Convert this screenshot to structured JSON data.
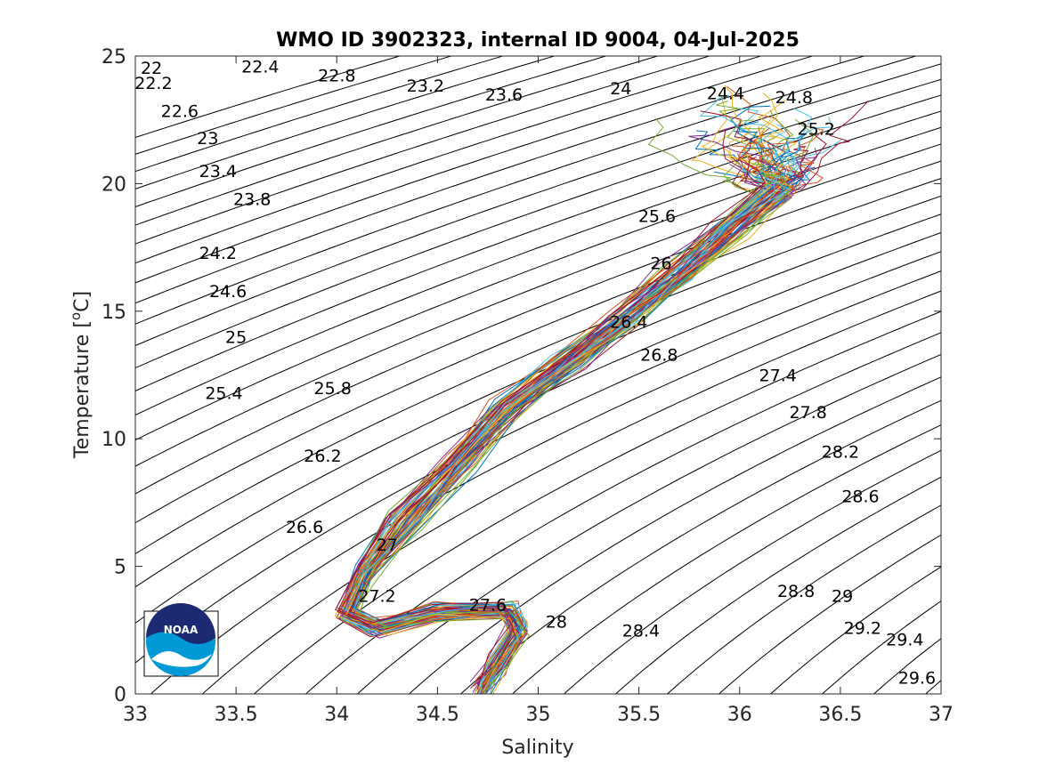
{
  "chart_data": {
    "type": "line",
    "title": "WMO ID 3902323, internal ID 9004, 04-Jul-2025",
    "xlabel": "Salinity",
    "ylabel_main": "Temperature [",
    "ylabel_sup": "o",
    "ylabel_tail": "C]",
    "xlim": [
      33,
      37
    ],
    "ylim": [
      0,
      25
    ],
    "xticks": [
      33,
      33.5,
      34,
      34.5,
      35,
      35.5,
      36,
      36.5,
      37
    ],
    "xtick_labels": [
      "33",
      "33.5",
      "34",
      "34.5",
      "35",
      "35.5",
      "36",
      "36.5",
      "37"
    ],
    "yticks": [
      0,
      5,
      10,
      15,
      20,
      25
    ],
    "ytick_labels": [
      "0",
      "5",
      "10",
      "15",
      "20",
      "25"
    ],
    "grid": false,
    "density_isolines": {
      "min": 21.8,
      "max": 30.0,
      "step": 0.2,
      "color": "#000000"
    },
    "density_labels": [
      {
        "text": "22",
        "s": 33.08,
        "t": 24.55
      },
      {
        "text": "22.2",
        "s": 33.09,
        "t": 23.95
      },
      {
        "text": "22.4",
        "s": 33.62,
        "t": 24.6
      },
      {
        "text": "22.6",
        "s": 33.22,
        "t": 22.85
      },
      {
        "text": "22.8",
        "s": 34.0,
        "t": 24.25
      },
      {
        "text": "23",
        "s": 33.36,
        "t": 21.8
      },
      {
        "text": "23.2",
        "s": 34.44,
        "t": 23.85
      },
      {
        "text": "23.4",
        "s": 33.41,
        "t": 20.5
      },
      {
        "text": "23.6",
        "s": 34.83,
        "t": 23.5
      },
      {
        "text": "23.8",
        "s": 33.58,
        "t": 19.4
      },
      {
        "text": "24",
        "s": 35.41,
        "t": 23.75
      },
      {
        "text": "24.2",
        "s": 33.41,
        "t": 17.3
      },
      {
        "text": "24.4",
        "s": 35.93,
        "t": 23.55
      },
      {
        "text": "24.6",
        "s": 33.46,
        "t": 15.8
      },
      {
        "text": "24.8",
        "s": 36.27,
        "t": 23.4
      },
      {
        "text": "25",
        "s": 33.5,
        "t": 14.0
      },
      {
        "text": "25.2",
        "s": 36.38,
        "t": 22.15
      },
      {
        "text": "25.4",
        "s": 33.44,
        "t": 11.8
      },
      {
        "text": "25.6",
        "s": 35.59,
        "t": 18.75
      },
      {
        "text": "25.8",
        "s": 33.98,
        "t": 12.0
      },
      {
        "text": "26",
        "s": 35.61,
        "t": 16.9
      },
      {
        "text": "26.2",
        "s": 33.93,
        "t": 9.35
      },
      {
        "text": "26.4",
        "s": 35.45,
        "t": 14.6
      },
      {
        "text": "26.6",
        "s": 33.84,
        "t": 6.55
      },
      {
        "text": "26.8",
        "s": 35.6,
        "t": 13.3
      },
      {
        "text": "27",
        "s": 34.25,
        "t": 5.85
      },
      {
        "text": "27.2",
        "s": 34.2,
        "t": 3.85
      },
      {
        "text": "27.4",
        "s": 36.19,
        "t": 12.5
      },
      {
        "text": "27.6",
        "s": 34.75,
        "t": 3.5
      },
      {
        "text": "27.8",
        "s": 36.34,
        "t": 11.05
      },
      {
        "text": "28",
        "s": 35.09,
        "t": 2.85
      },
      {
        "text": "28.2",
        "s": 36.5,
        "t": 9.5
      },
      {
        "text": "28.4",
        "s": 35.51,
        "t": 2.5
      },
      {
        "text": "28.6",
        "s": 36.6,
        "t": 7.75
      },
      {
        "text": "28.8",
        "s": 36.28,
        "t": 4.05
      },
      {
        "text": "29",
        "s": 36.51,
        "t": 3.85
      },
      {
        "text": "29.2",
        "s": 36.61,
        "t": 2.6
      },
      {
        "text": "29.4",
        "s": 36.82,
        "t": 2.15
      },
      {
        "text": "29.6",
        "s": 36.88,
        "t": 0.65
      }
    ],
    "series_colors": [
      "#0072BD",
      "#D95319",
      "#EDB120",
      "#7E2F8E",
      "#77AC30",
      "#4DBEEE",
      "#A2142F"
    ],
    "series_count": 70,
    "profile_shape": [
      {
        "s": 34.72,
        "t": 0.2
      },
      {
        "s": 34.8,
        "t": 1.2
      },
      {
        "s": 34.9,
        "t": 2.5
      },
      {
        "s": 34.85,
        "t": 3.3
      },
      {
        "s": 34.5,
        "t": 3.2
      },
      {
        "s": 34.2,
        "t": 2.6
      },
      {
        "s": 34.05,
        "t": 3.2
      },
      {
        "s": 34.15,
        "t": 4.8
      },
      {
        "s": 34.35,
        "t": 6.8
      },
      {
        "s": 34.6,
        "t": 9.0
      },
      {
        "s": 34.85,
        "t": 11.2
      },
      {
        "s": 35.15,
        "t": 13.0
      },
      {
        "s": 35.45,
        "t": 14.8
      },
      {
        "s": 35.7,
        "t": 16.5
      },
      {
        "s": 35.95,
        "t": 18.2
      },
      {
        "s": 36.2,
        "t": 19.8
      }
    ],
    "logo": {
      "name": "NOAA",
      "text": "NOAA"
    }
  }
}
